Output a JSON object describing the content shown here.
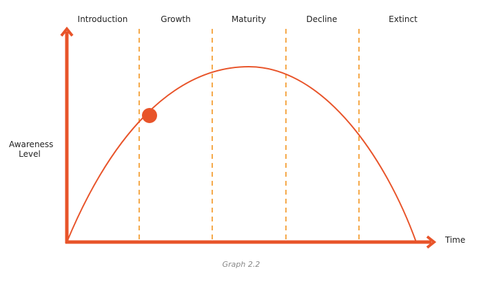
{
  "stages": [
    "Introduction",
    "Growth",
    "Maturity",
    "Decline",
    "Extinct"
  ],
  "y_axis_label": "Awareness Level",
  "x_axis_label": "Time",
  "caption": "Graph 2.2"
}
